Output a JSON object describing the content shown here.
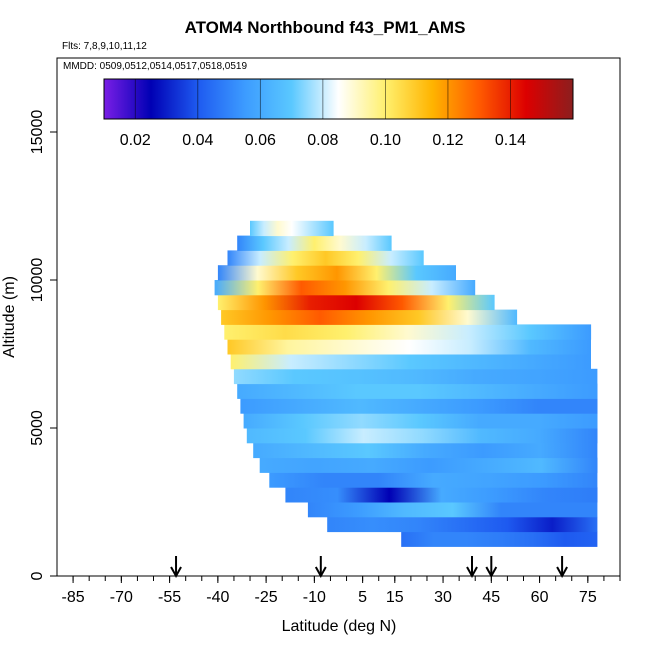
{
  "chart_data": {
    "type": "heatmap",
    "title": "ATOM4 Northbound f43_PM1_AMS",
    "flights_note": "Flts: 7,8,9,10,11,12",
    "dates_note": "MMDD: 0509,0512,0514,0517,0518,0519",
    "xlabel": "Latitude (deg N)",
    "ylabel": "Altitude (m)",
    "xlim": [
      -90,
      85
    ],
    "ylim": [
      0,
      17500
    ],
    "x_ticks": [
      -85,
      -70,
      -55,
      -40,
      -25,
      -10,
      5,
      15,
      30,
      45,
      60,
      75
    ],
    "y_ticks": [
      0,
      5000,
      10000,
      15000
    ],
    "colorbar": {
      "min": 0.01,
      "max": 0.16,
      "ticks": [
        0.02,
        0.04,
        0.06,
        0.08,
        0.1,
        0.12,
        0.14
      ],
      "tick_labels": [
        "0.02",
        "0.04",
        "0.06",
        "0.08",
        "0.10",
        "0.12",
        "0.14"
      ],
      "colors": [
        "#7a1ee6",
        "#0000b4",
        "#1e5af0",
        "#3c9bff",
        "#5ac8ff",
        "#ffffff",
        "#fff06e",
        "#ffb400",
        "#ff5a00",
        "#dc0000",
        "#8c1e1e"
      ]
    },
    "arrow_latitudes": [
      -53,
      -8,
      39,
      45,
      67
    ],
    "altitude_bands": [
      {
        "alt_bottom": 1000,
        "alt_top": 1500,
        "lat_start": 17,
        "lat_end": 78,
        "values": [
          0.045,
          0.05,
          0.05,
          0.048,
          0.045,
          0.04,
          0.042
        ]
      },
      {
        "alt_bottom": 1500,
        "alt_top": 2000,
        "lat_start": -6,
        "lat_end": 78,
        "values": [
          0.05,
          0.052,
          0.05,
          0.045,
          0.04,
          0.03,
          0.045
        ]
      },
      {
        "alt_bottom": 2000,
        "alt_top": 2500,
        "lat_start": -12,
        "lat_end": 78,
        "values": [
          0.05,
          0.055,
          0.065,
          0.07,
          0.05,
          0.05,
          0.05
        ]
      },
      {
        "alt_bottom": 2500,
        "alt_top": 3000,
        "lat_start": -19,
        "lat_end": 78,
        "values": [
          0.05,
          0.052,
          0.025,
          0.06,
          0.055,
          0.05,
          0.048
        ]
      },
      {
        "alt_bottom": 3000,
        "alt_top": 3500,
        "lat_start": -24,
        "lat_end": 78,
        "values": [
          0.055,
          0.05,
          0.05,
          0.06,
          0.058,
          0.055,
          0.05
        ]
      },
      {
        "alt_bottom": 3500,
        "alt_top": 4000,
        "lat_start": -27,
        "lat_end": 78,
        "values": [
          0.06,
          0.058,
          0.06,
          0.055,
          0.06,
          0.065,
          0.05
        ]
      },
      {
        "alt_bottom": 4000,
        "alt_top": 4500,
        "lat_start": -29,
        "lat_end": 78,
        "values": [
          0.06,
          0.065,
          0.07,
          0.06,
          0.055,
          0.06,
          0.05
        ]
      },
      {
        "alt_bottom": 4500,
        "alt_top": 5000,
        "lat_start": -31,
        "lat_end": 78,
        "values": [
          0.065,
          0.07,
          0.08,
          0.075,
          0.065,
          0.06,
          0.05
        ]
      },
      {
        "alt_bottom": 5000,
        "alt_top": 5500,
        "lat_start": -32,
        "lat_end": 78,
        "values": [
          0.06,
          0.07,
          0.075,
          0.07,
          0.06,
          0.06,
          0.055
        ]
      },
      {
        "alt_bottom": 5500,
        "alt_top": 6000,
        "lat_start": -33,
        "lat_end": 78,
        "values": [
          0.055,
          0.06,
          0.065,
          0.06,
          0.055,
          0.05,
          0.05
        ]
      },
      {
        "alt_bottom": 6000,
        "alt_top": 6500,
        "lat_start": -34,
        "lat_end": 78,
        "values": [
          0.06,
          0.065,
          0.07,
          0.07,
          0.065,
          0.06,
          0.055
        ]
      },
      {
        "alt_bottom": 6500,
        "alt_top": 7000,
        "lat_start": -35,
        "lat_end": 78,
        "values": [
          0.075,
          0.07,
          0.068,
          0.065,
          0.06,
          0.058,
          0.055
        ]
      },
      {
        "alt_bottom": 7000,
        "alt_top": 7500,
        "lat_start": -36,
        "lat_end": 76,
        "values": [
          0.1,
          0.08,
          0.075,
          0.07,
          0.065,
          0.06,
          0.055
        ]
      },
      {
        "alt_bottom": 7500,
        "alt_top": 8000,
        "lat_start": -37,
        "lat_end": 76,
        "values": [
          0.11,
          0.095,
          0.09,
          0.085,
          0.08,
          0.065,
          0.055
        ]
      },
      {
        "alt_bottom": 8000,
        "alt_top": 8500,
        "lat_start": -38,
        "lat_end": 76,
        "values": [
          0.1,
          0.105,
          0.1,
          0.09,
          0.08,
          0.07,
          0.055
        ]
      },
      {
        "alt_bottom": 8500,
        "alt_top": 9000,
        "lat_start": -39,
        "lat_end": 53,
        "values": [
          0.11,
          0.12,
          0.13,
          0.12,
          0.11,
          0.09,
          0.065
        ]
      },
      {
        "alt_bottom": 9000,
        "alt_top": 9500,
        "lat_start": -40,
        "lat_end": 46,
        "values": [
          0.1,
          0.12,
          0.14,
          0.145,
          0.13,
          0.1,
          0.07
        ]
      },
      {
        "alt_bottom": 9500,
        "alt_top": 10000,
        "lat_start": -41,
        "lat_end": 40,
        "values": [
          0.06,
          0.1,
          0.13,
          0.12,
          0.1,
          0.08,
          0.06
        ]
      },
      {
        "alt_bottom": 10000,
        "alt_top": 10500,
        "lat_start": -40,
        "lat_end": 34,
        "values": [
          0.05,
          0.09,
          0.11,
          0.12,
          0.1,
          0.07,
          0.06
        ]
      },
      {
        "alt_bottom": 10500,
        "alt_top": 11000,
        "lat_start": -37,
        "lat_end": 24,
        "values": [
          0.05,
          0.08,
          0.1,
          0.11,
          0.1,
          0.08,
          0.07
        ]
      },
      {
        "alt_bottom": 11000,
        "alt_top": 11500,
        "lat_start": -34,
        "lat_end": 14,
        "values": [
          0.05,
          0.07,
          0.08,
          0.1,
          0.09,
          0.08,
          0.07
        ]
      },
      {
        "alt_bottom": 11500,
        "alt_top": 12000,
        "lat_start": -30,
        "lat_end": -4,
        "values": [
          0.07,
          0.08,
          0.09,
          0.085,
          0.08,
          0.075,
          0.07
        ]
      }
    ]
  }
}
